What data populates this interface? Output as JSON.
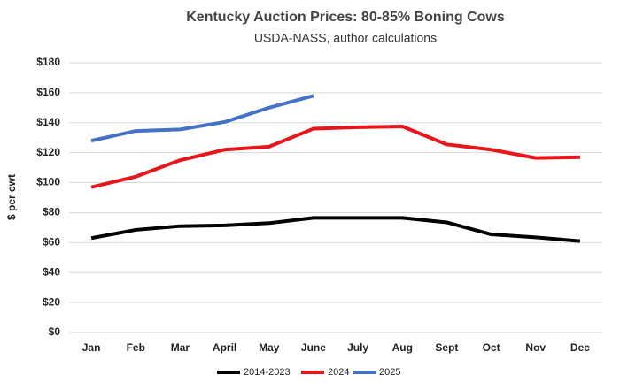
{
  "chart_data": {
    "type": "line",
    "title": "Kentucky Auction Prices: 80-85% Boning Cows",
    "subtitle": "USDA-NASS, author calculations",
    "y_label": "$ per cwt",
    "categories": [
      "Jan",
      "Feb",
      "Mar",
      "April",
      "May",
      "June",
      "July",
      "Aug",
      "Sept",
      "Oct",
      "Nov",
      "Dec"
    ],
    "series": [
      {
        "name": "2014-2023",
        "color": "#000000",
        "values": [
          63,
          68.5,
          71,
          71.5,
          73,
          76.5,
          76.5,
          76.5,
          73.5,
          65.5,
          63.5,
          61
        ]
      },
      {
        "name": "2024",
        "color": "#e8161b",
        "values": [
          97,
          104,
          115,
          122,
          124,
          136,
          137,
          137.5,
          125.5,
          122,
          116.5,
          117
        ]
      },
      {
        "name": "2025",
        "color": "#4472c4",
        "values": [
          128,
          134.5,
          135.5,
          140.5,
          150,
          158,
          null,
          null,
          null,
          null,
          null,
          null
        ]
      }
    ],
    "ylim": [
      0,
      180
    ],
    "yticks": [
      {
        "value": 0,
        "label": "$0"
      },
      {
        "value": 20,
        "label": "$20"
      },
      {
        "value": 40,
        "label": "$40"
      },
      {
        "value": 60,
        "label": "$60"
      },
      {
        "value": 80,
        "label": "$80"
      },
      {
        "value": 100,
        "label": "$100"
      },
      {
        "value": 120,
        "label": "$120"
      },
      {
        "value": 140,
        "label": "$140"
      },
      {
        "value": 160,
        "label": "$160"
      },
      {
        "value": 180,
        "label": "$180"
      }
    ],
    "grid": true,
    "legend": "bottom"
  }
}
